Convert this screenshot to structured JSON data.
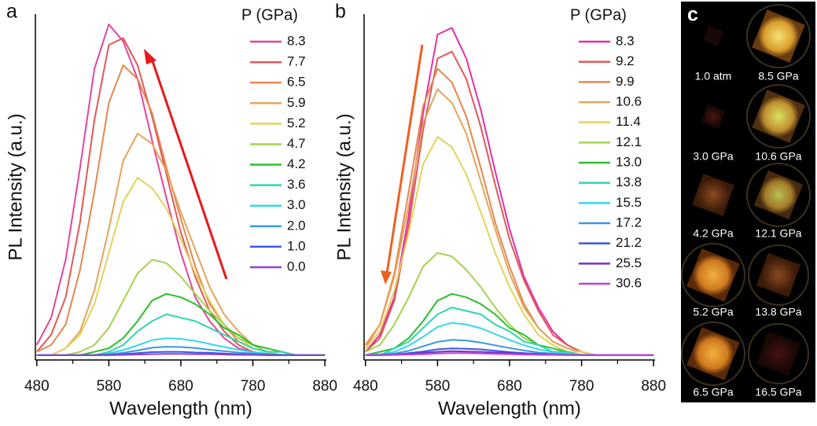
{
  "chart_data": [
    {
      "type": "line",
      "panel_label": "a",
      "x_label": "Wavelength (nm)",
      "y_label": "PL Intensity (a.u.)",
      "legend_title": "P (GPa)",
      "x": [
        480,
        500,
        520,
        540,
        560,
        580,
        600,
        620,
        640,
        660,
        680,
        700,
        720,
        740,
        760,
        780,
        800,
        820,
        840,
        860,
        880
      ],
      "xlim": [
        478,
        882
      ],
      "ylim": [
        -1.4,
        100
      ],
      "xticks": [
        480,
        580,
        680,
        780,
        880
      ],
      "xminorticks": [
        530,
        630,
        730,
        830
      ],
      "series": [
        {
          "name": "8.3",
          "color": "#e2469c",
          "values": [
            3,
            11,
            28,
            55,
            84,
            97,
            92,
            81,
            63,
            46,
            30,
            17,
            10,
            5,
            2,
            1,
            0,
            0,
            0,
            0,
            0
          ]
        },
        {
          "name": "7.7",
          "color": "#e05858",
          "values": [
            1,
            6,
            17,
            39,
            69,
            91,
            93,
            85,
            70,
            53,
            36,
            23,
            13,
            7,
            3,
            1,
            0,
            0,
            0,
            0,
            0
          ]
        },
        {
          "name": "6.5",
          "color": "#e5874e",
          "values": [
            1,
            3,
            9,
            25,
            48,
            74,
            85,
            81,
            71,
            55,
            40,
            26,
            15,
            9,
            4,
            2,
            1,
            0,
            0,
            0,
            0
          ]
        },
        {
          "name": "5.9",
          "color": "#e2a55a",
          "values": [
            0,
            0,
            2,
            7,
            19,
            37,
            57,
            65,
            62,
            54,
            42,
            31,
            20,
            12,
            7,
            3,
            1,
            1,
            0,
            0,
            0
          ]
        },
        {
          "name": "5.2",
          "color": "#e2d35a",
          "values": [
            0,
            0,
            2,
            6,
            15,
            30,
            45,
            52,
            49,
            43,
            34,
            24,
            16,
            9,
            5,
            2,
            1,
            0,
            0,
            0,
            0
          ]
        },
        {
          "name": "4.7",
          "color": "#a5d250",
          "values": [
            0,
            0,
            0,
            1,
            3,
            8,
            16,
            24,
            28,
            27,
            23,
            18,
            13,
            9,
            5,
            3,
            1,
            1,
            0,
            0,
            0
          ]
        },
        {
          "name": "4.2",
          "color": "#2cbf2c",
          "values": [
            0,
            0,
            0,
            0,
            1,
            2,
            5,
            10,
            16,
            18,
            17,
            15,
            12,
            8,
            6,
            3,
            2,
            1,
            0,
            0,
            0
          ]
        },
        {
          "name": "3.6",
          "color": "#30d6ae",
          "values": [
            0,
            0,
            0,
            0,
            0,
            1,
            3,
            7,
            10,
            12,
            11,
            10,
            8,
            6,
            4,
            2,
            1,
            1,
            0,
            0,
            0
          ]
        },
        {
          "name": "3.0",
          "color": "#34d8e8",
          "values": [
            0,
            0,
            0,
            0,
            0,
            0.6,
            1.5,
            2.9,
            4.4,
            5,
            4.8,
            4.2,
            3.3,
            2.4,
            1.6,
            0.9,
            0.5,
            0.2,
            0.1,
            0,
            0
          ]
        },
        {
          "name": "2.0",
          "color": "#3a98e0",
          "values": [
            0,
            0,
            0,
            0,
            0.1,
            0.3,
            0.7,
            1.4,
            2.2,
            2.5,
            2.4,
            2.1,
            1.6,
            1.2,
            0.8,
            0.5,
            0.3,
            0.1,
            0.1,
            0,
            0
          ]
        },
        {
          "name": "1.0",
          "color": "#3a58e0",
          "values": [
            0,
            0,
            0,
            0,
            0,
            0.1,
            0.3,
            0.6,
            0.9,
            1,
            1,
            0.8,
            0.7,
            0.5,
            0.3,
            0.2,
            0.1,
            0,
            0,
            0,
            0
          ]
        },
        {
          "name": "0.0",
          "color": "#9040d0",
          "values": [
            0,
            0,
            0,
            0,
            0,
            0,
            0.1,
            0.2,
            0.3,
            0.4,
            0.4,
            0.3,
            0.3,
            0.2,
            0.1,
            0.1,
            0,
            0,
            0,
            0,
            0
          ]
        }
      ]
    },
    {
      "type": "line",
      "panel_label": "b",
      "x_label": "Wavelength (nm)",
      "y_label": "PL Intensity (a.u.)",
      "legend_title": "P (GPa)",
      "x": [
        480,
        500,
        520,
        540,
        560,
        580,
        600,
        620,
        640,
        660,
        680,
        700,
        720,
        740,
        760,
        780,
        800,
        820,
        840,
        860,
        880
      ],
      "xlim": [
        478,
        882
      ],
      "ylim": [
        -1.4,
        100
      ],
      "xticks": [
        480,
        580,
        680,
        780,
        880
      ],
      "xminorticks": [
        530,
        630,
        730,
        830
      ],
      "series": [
        {
          "name": "8.3",
          "color": "#e030a8",
          "values": [
            1,
            6,
            17,
            41,
            71,
            94,
            96,
            87,
            72,
            54,
            37,
            23,
            14,
            7,
            3,
            1,
            0,
            0,
            0,
            0,
            0
          ]
        },
        {
          "name": "9.2",
          "color": "#e05858",
          "values": [
            1,
            5,
            16,
            38,
            66,
            87,
            89,
            81,
            67,
            50,
            34,
            22,
            13,
            6,
            3,
            1,
            0,
            0,
            0,
            0,
            0
          ]
        },
        {
          "name": "9.9",
          "color": "#e5874e",
          "values": [
            3,
            9,
            24,
            48,
            73,
            84,
            80,
            70,
            55,
            39,
            26,
            15,
            8,
            4,
            2,
            1,
            0,
            0,
            0,
            0,
            0
          ]
        },
        {
          "name": "10.6",
          "color": "#e2a55a",
          "values": [
            2,
            9,
            23,
            44,
            68,
            78,
            74,
            65,
            51,
            37,
            24,
            14,
            8,
            4,
            2,
            1,
            0,
            0,
            0,
            0,
            0
          ]
        },
        {
          "name": "11.4",
          "color": "#e2d35a",
          "values": [
            2,
            7,
            19,
            36,
            56,
            64,
            61,
            53,
            42,
            30,
            20,
            12,
            6,
            3,
            1,
            1,
            0,
            0,
            0,
            0,
            0
          ]
        },
        {
          "name": "12.1",
          "color": "#a5d250",
          "values": [
            1,
            3,
            9,
            17,
            26,
            30,
            29,
            25,
            20,
            14,
            9,
            5,
            3,
            1,
            1,
            0,
            0,
            0,
            0,
            0,
            0
          ]
        },
        {
          "name": "13.0",
          "color": "#2cbf2c",
          "values": [
            0,
            1,
            2,
            5,
            10,
            16,
            18,
            17,
            15,
            12,
            8,
            6,
            3,
            2,
            1,
            0,
            0,
            0,
            0,
            0,
            0
          ]
        },
        {
          "name": "13.8",
          "color": "#30d6ae",
          "values": [
            0,
            0,
            2,
            4,
            8,
            12,
            14,
            13,
            12,
            9,
            7,
            4,
            3,
            1,
            1,
            0,
            0,
            0,
            0,
            0,
            0
          ]
        },
        {
          "name": "15.5",
          "color": "#34d8e8",
          "values": [
            0.1,
            0.3,
            1,
            2.8,
            5.4,
            8.3,
            9.5,
            9,
            7.9,
            6.2,
            4.5,
            2.9,
            1.7,
            1,
            0.5,
            0.2,
            0.1,
            0,
            0,
            0,
            0
          ]
        },
        {
          "name": "17.2",
          "color": "#3a98e0",
          "values": [
            0,
            0.1,
            0.5,
            1.3,
            2.6,
            3.9,
            4.5,
            4.3,
            3.7,
            2.9,
            2.1,
            1.4,
            0.8,
            0.5,
            0.2,
            0.1,
            0,
            0,
            0,
            0,
            0
          ]
        },
        {
          "name": "21.2",
          "color": "#3a58e0",
          "values": [
            0,
            0.1,
            0.2,
            0.6,
            1.1,
            1.7,
            2,
            1.9,
            1.7,
            1.3,
            0.9,
            0.6,
            0.4,
            0.2,
            0.1,
            0,
            0,
            0,
            0,
            0,
            0
          ]
        },
        {
          "name": "25.5",
          "color": "#7a30c0",
          "values": [
            0,
            0,
            0.1,
            0.3,
            0.7,
            1,
            1.2,
            1.1,
            1,
            0.8,
            0.6,
            0.4,
            0.2,
            0.1,
            0.1,
            0,
            0,
            0,
            0,
            0,
            0
          ]
        },
        {
          "name": "30.6",
          "color": "#c040e0",
          "values": [
            0,
            0,
            0.1,
            0.2,
            0.3,
            0.5,
            0.6,
            0.6,
            0.5,
            0.4,
            0.3,
            0.2,
            0.1,
            0.1,
            0,
            0,
            0,
            0,
            0,
            0,
            0
          ]
        }
      ]
    }
  ],
  "panel_c": {
    "label": "c",
    "images": [
      {
        "label": "1.0 atm"
      },
      {
        "label": "8.5 GPa"
      },
      {
        "label": "3.0 GPa"
      },
      {
        "label": "10.6 GPa"
      },
      {
        "label": "4.2 GPa"
      },
      {
        "label": "12.1 GPa"
      },
      {
        "label": "5.2 GPa"
      },
      {
        "label": "13.8 GPa"
      },
      {
        "label": "6.5 GPa"
      },
      {
        "label": "16.5 GPa"
      }
    ]
  }
}
